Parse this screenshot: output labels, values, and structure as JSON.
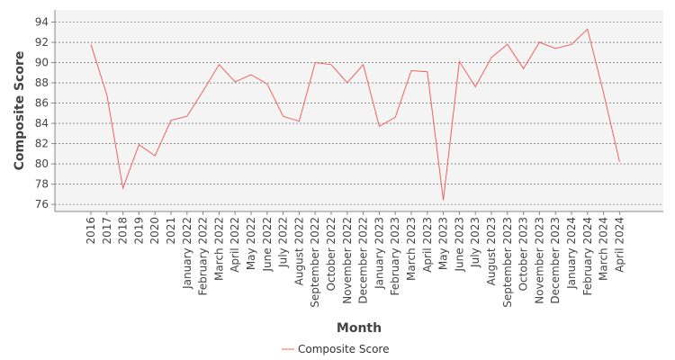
{
  "chart_data": {
    "type": "line",
    "xlabel": "Month",
    "ylabel": "Composite Score",
    "ylim": [
      75.3,
      95.2
    ],
    "yticks": [
      76,
      78,
      80,
      82,
      84,
      86,
      88,
      90,
      92,
      94
    ],
    "grid": true,
    "legend_position": "bottom-center",
    "categories": [
      "2016",
      "2017",
      "2018",
      "2019",
      "2020",
      "2021",
      "January 2022",
      "February 2022",
      "March 2022",
      "April 2022",
      "May 2022",
      "June 2022",
      "July 2022",
      "August 2022",
      "September 2022",
      "October 2022",
      "November 2022",
      "December 2022",
      "January 2023",
      "February 2023",
      "March 2023",
      "April 2023",
      "May 2023",
      "June 2023",
      "July 2023",
      "August 2023",
      "September 2023",
      "October 2023",
      "November 2023",
      "December 2023",
      "January 2024",
      "February 2024",
      "March 2024",
      "April 2024"
    ],
    "series": [
      {
        "name": "Composite Score",
        "color": "#f26060",
        "values": [
          91.8,
          86.8,
          77.6,
          81.9,
          80.8,
          84.3,
          84.7,
          87.2,
          89.8,
          88.1,
          88.8,
          87.9,
          84.7,
          84.2,
          90.0,
          89.8,
          88.0,
          89.8,
          83.7,
          84.6,
          89.2,
          89.1,
          76.4,
          90.1,
          87.6,
          90.5,
          91.8,
          89.4,
          92.0,
          91.4,
          91.8,
          93.3,
          87.0,
          80.2
        ]
      }
    ]
  }
}
